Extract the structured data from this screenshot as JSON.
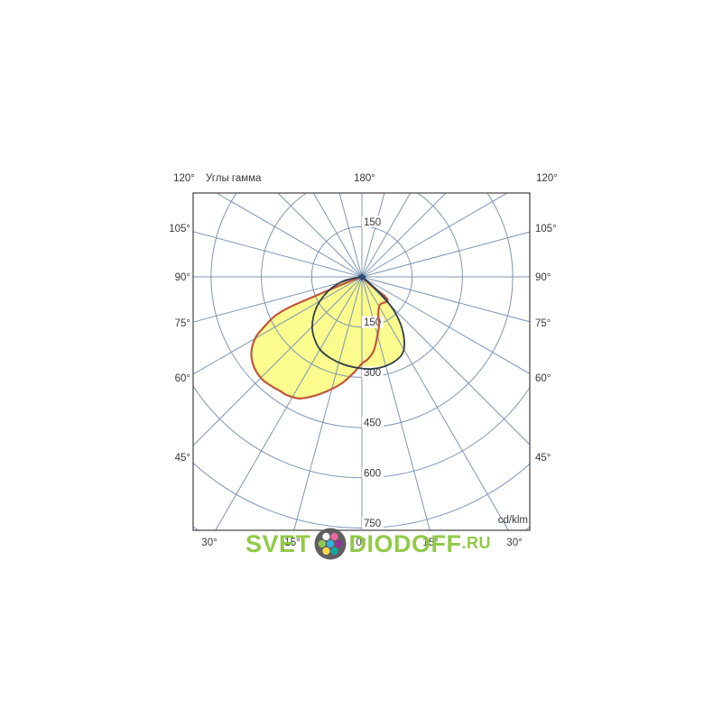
{
  "page": {
    "background": "#ffffff"
  },
  "watermark": {
    "text_before_logo": "SVET",
    "text_after_logo": "DIODOFF",
    "tld": ".RU",
    "color": "#8dc73f",
    "logo": {
      "name": "svetodiodoff-dots-logo",
      "circle_color": "#58585a",
      "dot_colors": [
        "#29abe2",
        "#ffffff",
        "#f0609e",
        "#8dc63f",
        "#93278f",
        "#ffd83d",
        "#00a79d"
      ]
    }
  },
  "chart_data": {
    "type": "polar",
    "subtype": "photometric-intensity-distribution",
    "legend_label": "Углы гамма",
    "unit_label": "cd/klm",
    "gamma_convention": "gamma 0° at nadir (straight down); positive = right half of diagram; values in cd/klm",
    "ring_step": 150,
    "radial_ticks": [
      150,
      300,
      450,
      600,
      750
    ],
    "extra_rings": [
      900
    ],
    "radial_tick_label_above": "150",
    "radial_tick_labels_below": [
      "150",
      "300",
      "450",
      "600",
      "750"
    ],
    "angle_labels": {
      "top_left": "120°",
      "top_center": "180°",
      "top_right": "120°",
      "left": [
        "105°",
        "90°",
        "75°",
        "60°",
        "45°"
      ],
      "right": [
        "105°",
        "90°",
        "75°",
        "60°",
        "45°"
      ],
      "bottom": [
        "30°",
        "15°",
        "0°",
        "15°",
        "30°"
      ]
    },
    "grid": {
      "radial_line_step_deg": 15,
      "color": "#7d95b4",
      "frame_color": "#4d4d4d"
    },
    "fill_color": "#fbfb8e",
    "center_marker_color": "#2c4a78",
    "text_color": "#383838",
    "series": [
      {
        "name": "red_curve",
        "color": "#c0573d",
        "width": 2.2,
        "points": [
          [
            47.5,
            44
          ],
          [
            49.7,
            92
          ],
          [
            46,
            105
          ],
          [
            33,
            99
          ],
          [
            23.7,
            121
          ],
          [
            19.7,
            152
          ],
          [
            14.4,
            184
          ],
          [
            9,
            224
          ],
          [
            3.7,
            248
          ],
          [
            0,
            259
          ],
          [
            -5.3,
            290
          ],
          [
            -10.6,
            323
          ],
          [
            -16.4,
            354
          ],
          [
            -21.9,
            383
          ],
          [
            -27.1,
            408
          ],
          [
            -32.4,
            418
          ],
          [
            -35.3,
            419
          ],
          [
            -39.3,
            423
          ],
          [
            -44,
            427
          ],
          [
            -48.9,
            422
          ],
          [
            -53.3,
            410
          ],
          [
            -57.1,
            391
          ],
          [
            -60.6,
            362
          ],
          [
            -63,
            326
          ],
          [
            -65.9,
            283
          ],
          [
            -67.3,
            231
          ],
          [
            -67.7,
            163
          ],
          [
            -69.4,
            46
          ]
        ]
      },
      {
        "name": "dark_curve",
        "color": "#2e3e49",
        "width": 1.8,
        "points": [
          [
            49.4,
            50
          ],
          [
            46.1,
            101
          ],
          [
            42.8,
            147
          ],
          [
            38.2,
            192
          ],
          [
            33.1,
            232
          ],
          [
            27.9,
            259
          ],
          [
            20.9,
            271
          ],
          [
            13,
            276
          ],
          [
            5,
            276
          ],
          [
            -2.8,
            272
          ],
          [
            -12.2,
            267
          ],
          [
            -21.3,
            260
          ],
          [
            -29.6,
            251
          ],
          [
            -36.6,
            235
          ],
          [
            -43.5,
            215
          ],
          [
            -50.2,
            189
          ],
          [
            -56.6,
            161
          ],
          [
            -62.9,
            130
          ],
          [
            -70,
            95
          ],
          [
            -78.1,
            52
          ]
        ]
      }
    ]
  }
}
